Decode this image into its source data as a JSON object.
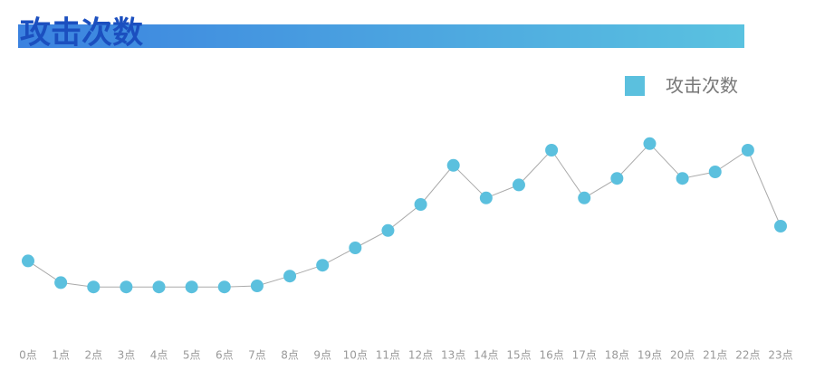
{
  "chart_data": {
    "type": "line",
    "title": "攻击次数",
    "categories": [
      "0点",
      "1点",
      "2点",
      "3点",
      "4点",
      "5点",
      "6点",
      "7点",
      "8点",
      "9点",
      "10点",
      "11点",
      "12点",
      "13点",
      "14点",
      "15点",
      "16点",
      "17点",
      "18点",
      "19点",
      "20点",
      "21点",
      "22点",
      "23点"
    ],
    "series": [
      {
        "name": "攻击次数",
        "color": "#5bc0de",
        "values": [
          34,
          24,
          22,
          22,
          22,
          22,
          22,
          22.5,
          27,
          32,
          40,
          48,
          60,
          78,
          63,
          69,
          85,
          63,
          72,
          88,
          72,
          75,
          85,
          50
        ]
      }
    ],
    "ylim": [
      0,
      100
    ],
    "legend": "top-right",
    "line_color": "#aaaaaa"
  }
}
